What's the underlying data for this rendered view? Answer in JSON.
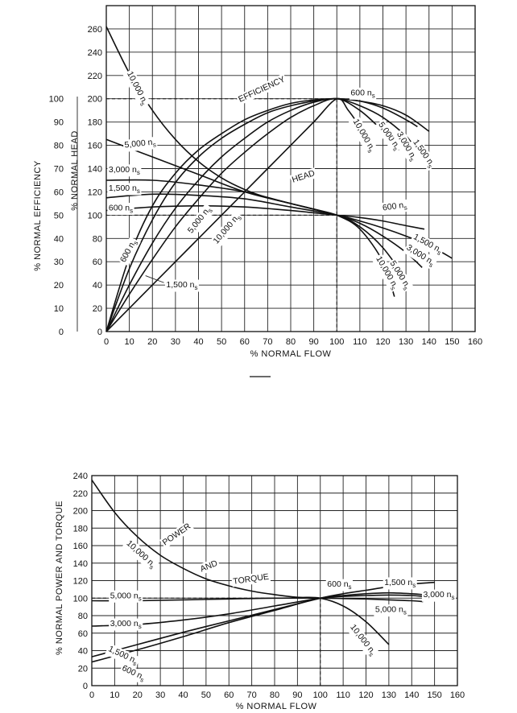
{
  "charts": [
    {
      "xlabel": "% NORMAL FLOW",
      "ylabel_left": "% NORMAL EFFICIENCY",
      "ylabel_right": "% NORMAL HEAD"
    },
    {
      "xlabel": "% NORMAL FLOW",
      "ylabel": "% NORMAL POWER AND TORQUE"
    }
  ],
  "chart_data": [
    {
      "type": "line",
      "xlabel": "% NORMAL FLOW",
      "ylabel": "% NORMAL HEAD",
      "ylabel_secondary": "% NORMAL EFFICIENCY",
      "xlim": [
        0,
        160
      ],
      "ylim": [
        0,
        280
      ],
      "ylim_secondary": [
        0,
        100
      ],
      "xticks": [
        "0",
        "10",
        "20",
        "30",
        "40",
        "50",
        "60",
        "70",
        "80",
        "90",
        "100",
        "110",
        "120",
        "130",
        "140",
        "150",
        "160"
      ],
      "yticks": [
        "0",
        "20",
        "40",
        "60",
        "80",
        "100",
        "120",
        "140",
        "160",
        "180",
        "200",
        "220",
        "240",
        "260"
      ],
      "yticks_secondary": [
        "0",
        "10",
        "20",
        "30",
        "40",
        "50",
        "60",
        "70",
        "80",
        "90",
        "100"
      ],
      "grid": true,
      "series": [
        {
          "name": "10,000 n_s",
          "group": "HEAD",
          "x": [
            0,
            10,
            20,
            30,
            40,
            50,
            60,
            70,
            80,
            90,
            100,
            110,
            120,
            125
          ],
          "y": [
            262,
            222,
            190,
            165,
            146,
            132,
            122,
            115,
            110,
            105,
            100,
            88,
            60,
            30
          ]
        },
        {
          "name": "5,000 n_s",
          "group": "HEAD",
          "x": [
            0,
            20,
            40,
            60,
            80,
            100,
            110,
            120,
            130
          ],
          "y": [
            165,
            150,
            135,
            120,
            110,
            100,
            90,
            72,
            45
          ]
        },
        {
          "name": "3,000 n_s",
          "group": "HEAD",
          "x": [
            0,
            20,
            40,
            60,
            80,
            100,
            110,
            120,
            130,
            137
          ],
          "y": [
            130,
            130,
            126,
            120,
            110,
            100,
            93,
            82,
            68,
            55
          ]
        },
        {
          "name": "1,500 n_s",
          "group": "HEAD",
          "x": [
            0,
            20,
            40,
            60,
            80,
            100,
            110,
            120,
            130,
            140,
            150
          ],
          "y": [
            115,
            118,
            117,
            114,
            107,
            100,
            95,
            89,
            82,
            74,
            63
          ]
        },
        {
          "name": "600 n_s",
          "group": "HEAD",
          "x": [
            0,
            20,
            40,
            60,
            80,
            100,
            110,
            120,
            130,
            138
          ],
          "y": [
            104,
            107,
            108,
            107,
            104,
            100,
            98,
            95,
            91,
            88
          ]
        },
        {
          "name": "600 n_s",
          "group": "EFFICIENCY",
          "x": [
            0,
            10,
            20,
            30,
            40,
            50,
            60,
            70,
            80,
            90,
            100,
            110,
            120,
            130,
            135
          ],
          "y_eff": [
            0,
            32,
            54,
            68,
            78,
            85,
            91,
            95,
            98,
            99.5,
            100,
            99,
            96,
            91,
            88
          ]
        },
        {
          "name": "1,500 n_s",
          "group": "EFFICIENCY",
          "x": [
            0,
            10,
            20,
            30,
            40,
            50,
            60,
            70,
            80,
            90,
            100,
            110,
            120,
            130,
            140
          ],
          "y_eff": [
            0,
            27,
            48,
            64,
            75,
            83,
            89,
            94,
            97,
            99,
            100,
            99,
            97,
            93,
            86
          ]
        },
        {
          "name": "3,000 n_s",
          "group": "EFFICIENCY",
          "x": [
            0,
            10,
            20,
            30,
            40,
            50,
            60,
            70,
            80,
            90,
            100,
            110,
            120,
            130,
            133
          ],
          "y_eff": [
            0,
            20,
            38,
            53,
            65,
            75,
            83,
            90,
            95,
            98.5,
            100,
            97,
            92,
            84,
            80
          ]
        },
        {
          "name": "5,000 n_s",
          "group": "EFFICIENCY",
          "x": [
            0,
            10,
            20,
            30,
            40,
            50,
            60,
            70,
            80,
            90,
            100,
            110,
            120,
            127
          ],
          "y_eff": [
            0,
            16,
            31,
            45,
            57,
            68,
            77,
            85,
            92,
            97,
            100,
            95,
            86,
            78
          ]
        },
        {
          "name": "10,000 n_s",
          "group": "EFFICIENCY",
          "x": [
            0,
            10,
            20,
            30,
            40,
            50,
            60,
            70,
            80,
            90,
            100,
            105,
            110,
            115
          ],
          "y_eff": [
            0,
            10,
            20,
            30,
            40,
            50,
            60,
            70,
            80,
            90,
            100,
            95,
            88,
            80
          ]
        }
      ],
      "labels": [
        "EFFICIENCY",
        "HEAD",
        "10,000 n",
        "5,000 n",
        "3,000 n",
        "1,500 n",
        "600 n",
        "600 n",
        "5,000 n",
        "10,000 n",
        "1,500 n",
        "600 n",
        "10,000 n",
        "5,000 n",
        "3,000 n",
        "1,500 n",
        "600 n",
        "5,000 n",
        "10,000 n",
        "3,000 n",
        "1,500 n"
      ],
      "label_sub": "s"
    },
    {
      "type": "line",
      "xlabel": "% NORMAL FLOW",
      "ylabel": "% NORMAL POWER AND TORQUE",
      "xlim": [
        0,
        160
      ],
      "ylim": [
        0,
        240
      ],
      "xticks": [
        "0",
        "10",
        "20",
        "30",
        "40",
        "50",
        "60",
        "70",
        "80",
        "90",
        "100",
        "110",
        "120",
        "130",
        "140",
        "150",
        "160"
      ],
      "yticks": [
        "0",
        "20",
        "40",
        "60",
        "80",
        "100",
        "120",
        "140",
        "160",
        "180",
        "200",
        "220",
        "240"
      ],
      "grid": true,
      "series": [
        {
          "name": "10,000 n_s",
          "x": [
            0,
            10,
            20,
            30,
            40,
            50,
            60,
            70,
            80,
            90,
            100,
            110,
            120,
            130
          ],
          "y": [
            235,
            198,
            170,
            149,
            134,
            122,
            114,
            108,
            104,
            101,
            100,
            91,
            73,
            47
          ]
        },
        {
          "name": "5,000 n_s",
          "x": [
            0,
            20,
            40,
            60,
            80,
            100,
            110,
            120,
            130,
            140,
            145
          ],
          "y": [
            97,
            97,
            98,
            99,
            100,
            100,
            99.5,
            99,
            98,
            97,
            96
          ]
        },
        {
          "name": "3,000 n_s",
          "x": [
            0,
            20,
            40,
            60,
            80,
            100,
            110,
            120,
            130,
            140,
            145
          ],
          "y": [
            68,
            70,
            75,
            82,
            91,
            100,
            102,
            103,
            103.5,
            103,
            102
          ]
        },
        {
          "name": "1,500 n_s",
          "x": [
            0,
            20,
            40,
            60,
            80,
            100,
            110,
            120,
            130,
            140,
            150
          ],
          "y": [
            33,
            47,
            61,
            74,
            87,
            100,
            105,
            109,
            113,
            116,
            118
          ]
        },
        {
          "name": "600 n_s",
          "x": [
            0,
            20,
            40,
            60,
            80,
            100,
            110,
            120,
            130,
            140,
            145
          ],
          "y": [
            27,
            41,
            56,
            72,
            86,
            100,
            103,
            105,
            106,
            105,
            104
          ]
        }
      ],
      "labels": [
        "POWER",
        "AND",
        "TORQUE",
        "10,000 n",
        "5,000 n",
        "3,000 n",
        "1,500 n",
        "600 n",
        "600 n",
        "1,500 n",
        "3,000 n",
        "5,000 n",
        "10,000 n"
      ],
      "label_sub": "s"
    }
  ]
}
